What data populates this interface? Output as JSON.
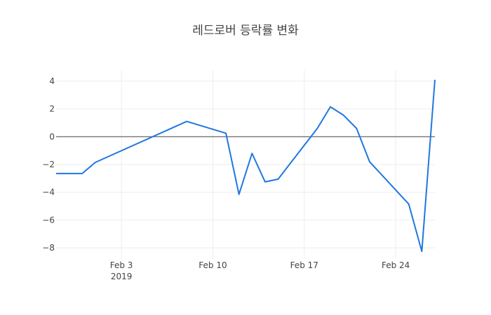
{
  "chart_data": {
    "type": "line",
    "title": "레드로버 등락률 변화",
    "xlabel": "",
    "ylabel": "",
    "x_start": "2019-01-29",
    "x_range_days": [
      0,
      29
    ],
    "ylim": [
      -8.8,
      4.8
    ],
    "y_ticks": [
      4,
      2,
      0,
      -2,
      -4,
      -6,
      -8
    ],
    "y_tick_labels": [
      "4",
      "2",
      "0",
      "−2",
      "−4",
      "−6",
      "−8"
    ],
    "x_ticks": [
      {
        "day": 5,
        "label": "Feb 3",
        "sublabel": "2019"
      },
      {
        "day": 12,
        "label": "Feb 10",
        "sublabel": ""
      },
      {
        "day": 19,
        "label": "Feb 17",
        "sublabel": ""
      },
      {
        "day": 26,
        "label": "Feb 24",
        "sublabel": ""
      }
    ],
    "grid": true,
    "zero_line": true,
    "series": [
      {
        "color": "#1f77e0",
        "points": [
          {
            "x": 0,
            "y": -2.65
          },
          {
            "x": 2,
            "y": -2.65
          },
          {
            "x": 3,
            "y": -1.85
          },
          {
            "x": 10,
            "y": 1.1
          },
          {
            "x": 13,
            "y": 0.25
          },
          {
            "x": 14,
            "y": -4.15
          },
          {
            "x": 15,
            "y": -1.2
          },
          {
            "x": 16,
            "y": -3.25
          },
          {
            "x": 17,
            "y": -3.05
          },
          {
            "x": 20,
            "y": 0.6
          },
          {
            "x": 21,
            "y": 2.15
          },
          {
            "x": 22,
            "y": 1.55
          },
          {
            "x": 23,
            "y": 0.6
          },
          {
            "x": 24,
            "y": -1.8
          },
          {
            "x": 27,
            "y": -4.85
          },
          {
            "x": 28,
            "y": -8.25
          },
          {
            "x": 29,
            "y": 4.1
          }
        ]
      }
    ]
  }
}
